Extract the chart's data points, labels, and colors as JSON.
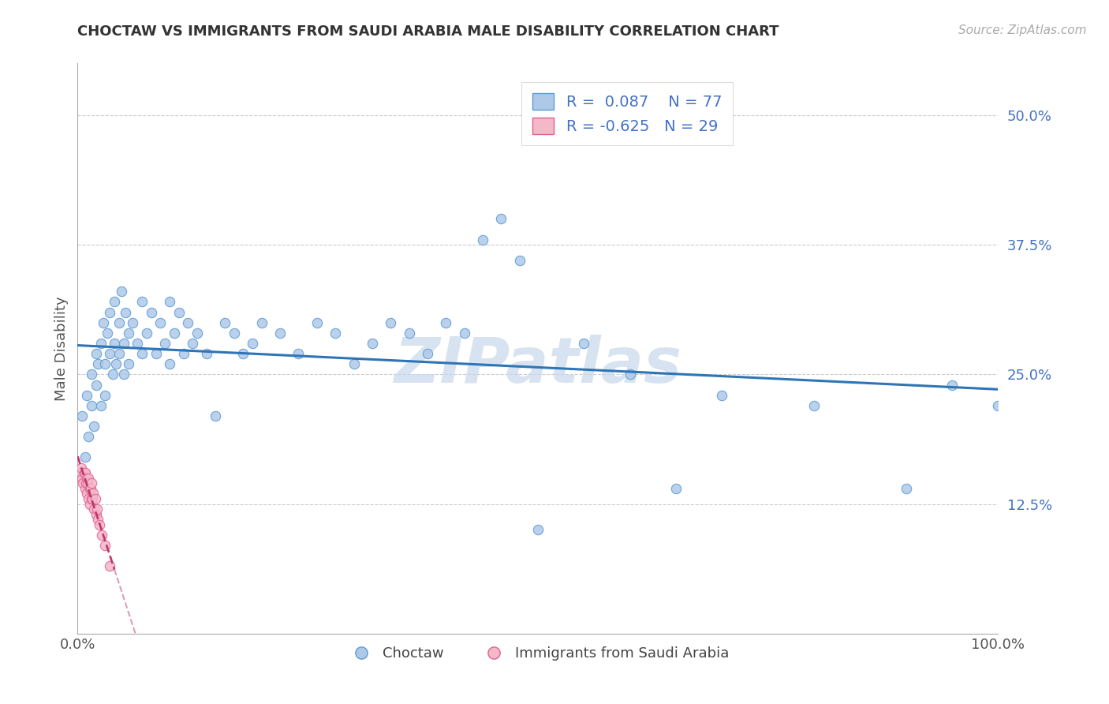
{
  "title": "CHOCTAW VS IMMIGRANTS FROM SAUDI ARABIA MALE DISABILITY CORRELATION CHART",
  "source": "Source: ZipAtlas.com",
  "ylabel": "Male Disability",
  "xlim": [
    0,
    1.0
  ],
  "ylim": [
    0,
    0.55
  ],
  "yticks": [
    0.0,
    0.125,
    0.25,
    0.375,
    0.5
  ],
  "ytick_labels": [
    "",
    "12.5%",
    "25.0%",
    "37.5%",
    "50.0%"
  ],
  "R_choctaw": 0.087,
  "N_choctaw": 77,
  "R_saudi": -0.625,
  "N_saudi": 29,
  "blue_color": "#aec8e8",
  "blue_edge_color": "#5b9bd5",
  "pink_color": "#f4b8c8",
  "pink_edge_color": "#e06090",
  "blue_line_color": "#2e75b6",
  "pink_line_color": "#c0396e",
  "watermark": "ZIPatlas",
  "choctaw_x": [
    0.005,
    0.008,
    0.01,
    0.012,
    0.015,
    0.015,
    0.018,
    0.02,
    0.02,
    0.022,
    0.025,
    0.025,
    0.028,
    0.03,
    0.03,
    0.032,
    0.035,
    0.035,
    0.038,
    0.04,
    0.04,
    0.042,
    0.045,
    0.045,
    0.048,
    0.05,
    0.05,
    0.052,
    0.055,
    0.055,
    0.06,
    0.065,
    0.07,
    0.07,
    0.075,
    0.08,
    0.085,
    0.09,
    0.095,
    0.1,
    0.1,
    0.105,
    0.11,
    0.115,
    0.12,
    0.125,
    0.13,
    0.14,
    0.15,
    0.16,
    0.17,
    0.18,
    0.19,
    0.2,
    0.22,
    0.24,
    0.26,
    0.28,
    0.3,
    0.32,
    0.34,
    0.36,
    0.38,
    0.4,
    0.42,
    0.44,
    0.46,
    0.48,
    0.5,
    0.55,
    0.6,
    0.65,
    0.7,
    0.8,
    0.9,
    0.95,
    1.0
  ],
  "choctaw_y": [
    0.21,
    0.17,
    0.23,
    0.19,
    0.25,
    0.22,
    0.2,
    0.27,
    0.24,
    0.26,
    0.28,
    0.22,
    0.3,
    0.26,
    0.23,
    0.29,
    0.27,
    0.31,
    0.25,
    0.28,
    0.32,
    0.26,
    0.3,
    0.27,
    0.33,
    0.28,
    0.25,
    0.31,
    0.29,
    0.26,
    0.3,
    0.28,
    0.32,
    0.27,
    0.29,
    0.31,
    0.27,
    0.3,
    0.28,
    0.32,
    0.26,
    0.29,
    0.31,
    0.27,
    0.3,
    0.28,
    0.29,
    0.27,
    0.21,
    0.3,
    0.29,
    0.27,
    0.28,
    0.3,
    0.29,
    0.27,
    0.3,
    0.29,
    0.26,
    0.28,
    0.3,
    0.29,
    0.27,
    0.3,
    0.29,
    0.38,
    0.4,
    0.36,
    0.1,
    0.28,
    0.25,
    0.14,
    0.23,
    0.22,
    0.14,
    0.24,
    0.22
  ],
  "saudi_x": [
    0.003,
    0.004,
    0.005,
    0.006,
    0.007,
    0.008,
    0.008,
    0.009,
    0.01,
    0.01,
    0.011,
    0.012,
    0.012,
    0.013,
    0.013,
    0.014,
    0.015,
    0.015,
    0.016,
    0.017,
    0.018,
    0.019,
    0.02,
    0.021,
    0.022,
    0.024,
    0.026,
    0.03,
    0.035
  ],
  "saudi_y": [
    0.155,
    0.16,
    0.15,
    0.145,
    0.155,
    0.14,
    0.155,
    0.145,
    0.135,
    0.15,
    0.145,
    0.13,
    0.15,
    0.14,
    0.125,
    0.14,
    0.13,
    0.145,
    0.13,
    0.135,
    0.12,
    0.13,
    0.115,
    0.12,
    0.11,
    0.105,
    0.095,
    0.085,
    0.065
  ]
}
